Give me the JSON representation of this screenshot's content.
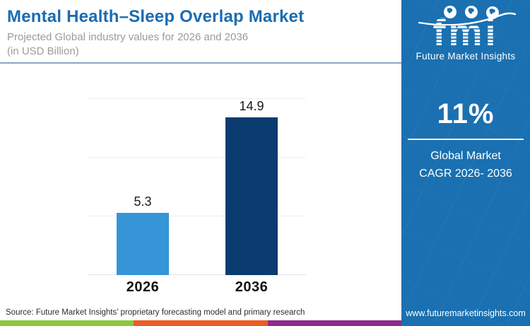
{
  "header": {
    "title": "Mental Health–Sleep Overlap Market",
    "subtitle1": "Projected Global industry values for 2026 and 2036",
    "subtitle2": "(in USD Billion)"
  },
  "chart_data": {
    "type": "bar",
    "categories": [
      "2026",
      "2036"
    ],
    "values": [
      5.3,
      14.9
    ],
    "value_labels": [
      "5.3",
      "14.9"
    ],
    "title": "Mental Health–Sleep Overlap Market",
    "xlabel": "",
    "ylabel": "",
    "unit": "USD Billion",
    "ylim": [
      0,
      15
    ],
    "gridlines": [
      0,
      5,
      10,
      15
    ],
    "grid": true,
    "legend": "none",
    "bar_colors": [
      "#3595d6",
      "#0a3c70"
    ]
  },
  "source": {
    "text": "Source: Future Market Insights’ proprietary forecasting model and primary research"
  },
  "sidebar": {
    "logo": {
      "text": "fmi",
      "label": "Future Market Insights"
    },
    "cagr": {
      "value": "11%",
      "line1": "Global Market",
      "line2": "CAGR 2026- 2036"
    },
    "website": "www.futuremarketinsights.com"
  },
  "colors": {
    "title_blue": "#1b6cb1",
    "panel_blue": "#1a70b0",
    "bar_light_blue": "#3595d6",
    "bar_dark_navy": "#0a3c70",
    "header_divider": "#8aa8c0",
    "subtitle_gray": "#9b9b9b",
    "strip_green": "#8cc63c",
    "strip_orange": "#ee5b23",
    "strip_purple": "#8f2b8a"
  }
}
